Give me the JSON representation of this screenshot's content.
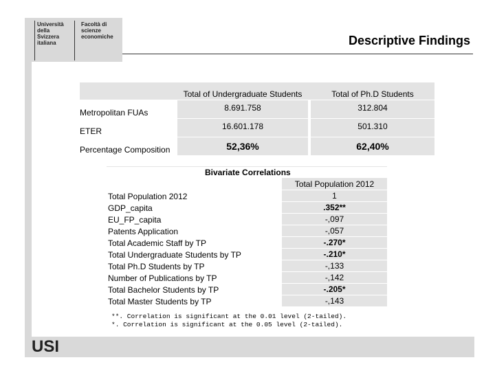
{
  "header": {
    "logo_university": "Università della Svizzera italiana",
    "logo_faculty": "Facoltà di scienze economiche",
    "title": "Descriptive Findings"
  },
  "table": {
    "columns": [
      "Total of Undergraduate Students",
      "Total of Ph.D Students"
    ],
    "rows": [
      [
        "Metropolitan FUAs",
        "8.691.758",
        "312.804"
      ],
      [
        "ETER",
        "16.601.178",
        "501.310"
      ],
      [
        "Percentage Composition",
        "52,36%",
        "62,40%"
      ]
    ]
  },
  "correlations": {
    "title": "Bivariate Correlations",
    "column": "Total Population 2012",
    "rows": [
      [
        "Total Population 2012",
        "1"
      ],
      [
        "GDP_capita",
        ".352**"
      ],
      [
        "EU_FP_capita",
        "-,097"
      ],
      [
        "Patents Application",
        "-,057"
      ],
      [
        "Total Academic Staff by TP",
        "-.270*"
      ],
      [
        "Total Undergraduate Students by TP",
        "-.210*"
      ],
      [
        "Total Ph.D Students by TP",
        "-,133"
      ],
      [
        "Number of Publications by TP",
        "-,142"
      ],
      [
        "Total Bachelor Students by TP",
        "-.205*"
      ],
      [
        "Total Master Students by TP",
        "-,143"
      ]
    ],
    "notes": [
      "**. Correlation is significant at the 0.01 level (2-tailed).",
      "*. Correlation is significant at the 0.05 level (2-tailed)."
    ]
  },
  "footer": {
    "logo": "USI"
  }
}
